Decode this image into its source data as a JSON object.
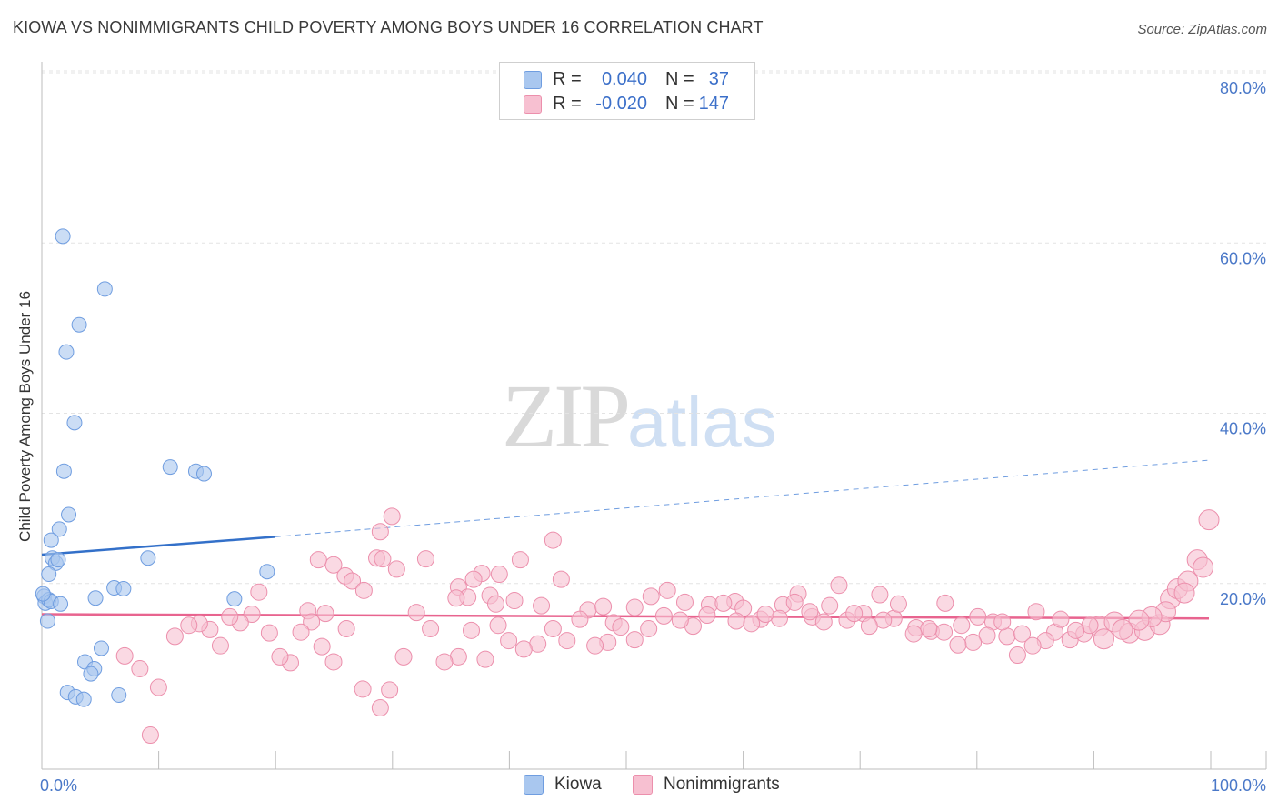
{
  "header": {
    "title": "KIOWA VS NONIMMIGRANTS CHILD POVERTY AMONG BOYS UNDER 16 CORRELATION CHART",
    "source": "Source: ZipAtlas.com"
  },
  "watermark": {
    "zip": "ZIP",
    "atlas": "atlas"
  },
  "legend": {
    "rows": [
      {
        "r_label": "R =",
        "r_value": "0.040",
        "n_label": "N =",
        "n_value": "37",
        "color": "#a9c7ef",
        "stroke": "#6f9de0"
      },
      {
        "r_label": "R =",
        "r_value": "-0.020",
        "n_label": "N =",
        "n_value": "147",
        "color": "#f7c0d1",
        "stroke": "#ec8fac"
      }
    ]
  },
  "bottom_legend": {
    "kiowa": "Kiowa",
    "nonimmigrants": "Nonimmigrants"
  },
  "chart_data": {
    "type": "scatter",
    "title": "KIOWA VS NONIMMIGRANTS CHILD POVERTY AMONG BOYS UNDER 16 CORRELATION CHART",
    "xlabel": "",
    "ylabel": "Child Poverty Among Boys Under 16",
    "xlim": [
      0,
      100
    ],
    "ylim": [
      0,
      80
    ],
    "x_tick_labels": [
      "0.0%",
      "100.0%"
    ],
    "y_ticks": [
      20,
      40,
      60,
      80
    ],
    "y_tick_labels": [
      "20.0%",
      "40.0%",
      "60.0%",
      "80.0%"
    ],
    "grid": true,
    "legend_position": "top-center",
    "series": [
      {
        "name": "Kiowa",
        "color": "#a9c7ef",
        "stroke": "#6f9de0",
        "trend": {
          "x": [
            0,
            20
          ],
          "y": [
            25.1,
            27.2
          ],
          "color": "#3370c9"
        },
        "trend_extension": {
          "x": [
            20,
            100
          ],
          "y": [
            27.2,
            36.2
          ],
          "color": "#6f9de0"
        },
        "points": [
          [
            1.8,
            62.5
          ],
          [
            5.4,
            56.3
          ],
          [
            3.2,
            52.1
          ],
          [
            2.1,
            48.9
          ],
          [
            2.8,
            40.6
          ],
          [
            1.9,
            34.9
          ],
          [
            11.0,
            35.4
          ],
          [
            13.2,
            34.9
          ],
          [
            13.9,
            34.6
          ],
          [
            2.3,
            29.8
          ],
          [
            1.5,
            28.1
          ],
          [
            0.8,
            26.8
          ],
          [
            0.9,
            24.7
          ],
          [
            1.2,
            24.1
          ],
          [
            1.4,
            24.5
          ],
          [
            9.1,
            24.7
          ],
          [
            19.3,
            23.1
          ],
          [
            0.6,
            22.8
          ],
          [
            6.2,
            21.2
          ],
          [
            7.0,
            21.1
          ],
          [
            0.2,
            20.2
          ],
          [
            4.6,
            20.0
          ],
          [
            16.5,
            19.9
          ],
          [
            0.3,
            19.4
          ],
          [
            0.6,
            19.8
          ],
          [
            0.8,
            19.6
          ],
          [
            1.6,
            19.3
          ],
          [
            0.5,
            17.3
          ],
          [
            5.1,
            14.1
          ],
          [
            3.7,
            12.5
          ],
          [
            4.5,
            11.7
          ],
          [
            4.2,
            11.1
          ],
          [
            2.2,
            8.9
          ],
          [
            2.9,
            8.4
          ],
          [
            3.6,
            8.1
          ],
          [
            6.6,
            8.6
          ],
          [
            0.1,
            20.5
          ]
        ]
      },
      {
        "name": "Nonimmigrants",
        "color": "#f7c0d1",
        "stroke": "#ec8fac",
        "trend": {
          "x": [
            0,
            100
          ],
          "y": [
            18.1,
            17.6
          ],
          "color": "#e8648f"
        },
        "points": [
          [
            30.0,
            29.6
          ],
          [
            29.0,
            27.8
          ],
          [
            43.8,
            26.8
          ],
          [
            28.7,
            24.7
          ],
          [
            29.2,
            24.6
          ],
          [
            41.0,
            24.5
          ],
          [
            32.9,
            24.6
          ],
          [
            25.0,
            23.9
          ],
          [
            30.4,
            23.4
          ],
          [
            37.7,
            22.9
          ],
          [
            39.2,
            22.8
          ],
          [
            23.7,
            24.5
          ],
          [
            26.0,
            22.6
          ],
          [
            37.0,
            22.2
          ],
          [
            44.5,
            22.2
          ],
          [
            26.6,
            22.0
          ],
          [
            38.4,
            20.3
          ],
          [
            35.7,
            21.3
          ],
          [
            27.6,
            20.9
          ],
          [
            22.8,
            18.5
          ],
          [
            24.3,
            18.2
          ],
          [
            36.5,
            20.1
          ],
          [
            35.5,
            20.0
          ],
          [
            38.9,
            19.3
          ],
          [
            40.5,
            19.7
          ],
          [
            42.8,
            19.1
          ],
          [
            46.8,
            18.6
          ],
          [
            48.1,
            19.0
          ],
          [
            49.0,
            17.1
          ],
          [
            50.8,
            18.9
          ],
          [
            52.2,
            20.2
          ],
          [
            53.6,
            20.9
          ],
          [
            55.1,
            19.5
          ],
          [
            57.2,
            19.2
          ],
          [
            59.4,
            19.6
          ],
          [
            60.1,
            18.8
          ],
          [
            61.6,
            17.5
          ],
          [
            63.5,
            19.2
          ],
          [
            64.8,
            20.5
          ],
          [
            66.0,
            17.8
          ],
          [
            67.5,
            19.1
          ],
          [
            69.0,
            17.4
          ],
          [
            70.4,
            18.2
          ],
          [
            71.8,
            20.4
          ],
          [
            73.0,
            17.6
          ],
          [
            74.9,
            16.5
          ],
          [
            76.2,
            16.1
          ],
          [
            77.4,
            19.4
          ],
          [
            78.8,
            16.8
          ],
          [
            80.2,
            17.8
          ],
          [
            81.5,
            17.2
          ],
          [
            82.7,
            15.5
          ],
          [
            84.0,
            15.8
          ],
          [
            85.2,
            18.4
          ],
          [
            86.8,
            16.0
          ],
          [
            88.1,
            15.1
          ],
          [
            89.3,
            15.8
          ],
          [
            90.6,
            16.7
          ],
          [
            91.9,
            17.2
          ],
          [
            93.2,
            15.9
          ],
          [
            94.5,
            16.2
          ],
          [
            95.8,
            16.9
          ],
          [
            96.7,
            19.9
          ],
          [
            97.3,
            21.1
          ],
          [
            98.2,
            22.0
          ],
          [
            99.0,
            24.5
          ],
          [
            100.0,
            29.2
          ],
          [
            99.5,
            23.6
          ],
          [
            97.9,
            20.6
          ],
          [
            96.3,
            18.4
          ],
          [
            95.1,
            17.8
          ],
          [
            94.0,
            17.4
          ],
          [
            92.6,
            16.3
          ],
          [
            91.0,
            15.2
          ],
          [
            89.8,
            16.8
          ],
          [
            88.6,
            16.2
          ],
          [
            87.3,
            17.5
          ],
          [
            86.0,
            15.0
          ],
          [
            84.9,
            14.4
          ],
          [
            83.6,
            13.3
          ],
          [
            82.3,
            17.2
          ],
          [
            81.0,
            15.6
          ],
          [
            79.8,
            14.8
          ],
          [
            78.5,
            14.5
          ],
          [
            77.3,
            16.0
          ],
          [
            76.0,
            16.4
          ],
          [
            74.7,
            15.8
          ],
          [
            73.4,
            19.3
          ],
          [
            72.1,
            17.4
          ],
          [
            70.9,
            16.7
          ],
          [
            69.6,
            18.2
          ],
          [
            68.3,
            21.5
          ],
          [
            67.0,
            17.2
          ],
          [
            65.8,
            18.4
          ],
          [
            64.5,
            19.5
          ],
          [
            63.2,
            17.6
          ],
          [
            62.0,
            18.1
          ],
          [
            60.8,
            17.0
          ],
          [
            59.5,
            17.3
          ],
          [
            58.4,
            19.4
          ],
          [
            57.0,
            18.0
          ],
          [
            55.8,
            16.7
          ],
          [
            54.7,
            17.4
          ],
          [
            53.3,
            17.9
          ],
          [
            52.0,
            16.4
          ],
          [
            50.8,
            15.1
          ],
          [
            49.6,
            16.6
          ],
          [
            48.5,
            14.8
          ],
          [
            47.4,
            14.4
          ],
          [
            46.1,
            17.5
          ],
          [
            45.0,
            15.0
          ],
          [
            43.8,
            16.4
          ],
          [
            42.5,
            14.6
          ],
          [
            41.3,
            14.0
          ],
          [
            40.0,
            15.0
          ],
          [
            39.1,
            16.8
          ],
          [
            38.0,
            12.8
          ],
          [
            36.8,
            16.2
          ],
          [
            35.7,
            13.1
          ],
          [
            34.5,
            12.5
          ],
          [
            33.3,
            16.4
          ],
          [
            32.1,
            18.3
          ],
          [
            31.0,
            13.1
          ],
          [
            29.8,
            9.2
          ],
          [
            29.0,
            7.1
          ],
          [
            27.5,
            9.3
          ],
          [
            26.1,
            16.4
          ],
          [
            25.0,
            12.5
          ],
          [
            24.0,
            14.3
          ],
          [
            23.1,
            17.2
          ],
          [
            22.2,
            16.0
          ],
          [
            21.3,
            12.4
          ],
          [
            20.4,
            13.1
          ],
          [
            19.5,
            15.9
          ],
          [
            18.6,
            20.7
          ],
          [
            18.0,
            18.1
          ],
          [
            17.0,
            17.1
          ],
          [
            16.1,
            17.8
          ],
          [
            15.3,
            14.4
          ],
          [
            14.4,
            16.3
          ],
          [
            13.5,
            17.0
          ],
          [
            12.6,
            16.8
          ],
          [
            11.4,
            15.5
          ],
          [
            10.0,
            9.5
          ],
          [
            9.3,
            3.9
          ],
          [
            8.4,
            11.7
          ],
          [
            7.1,
            13.2
          ]
        ]
      }
    ]
  }
}
